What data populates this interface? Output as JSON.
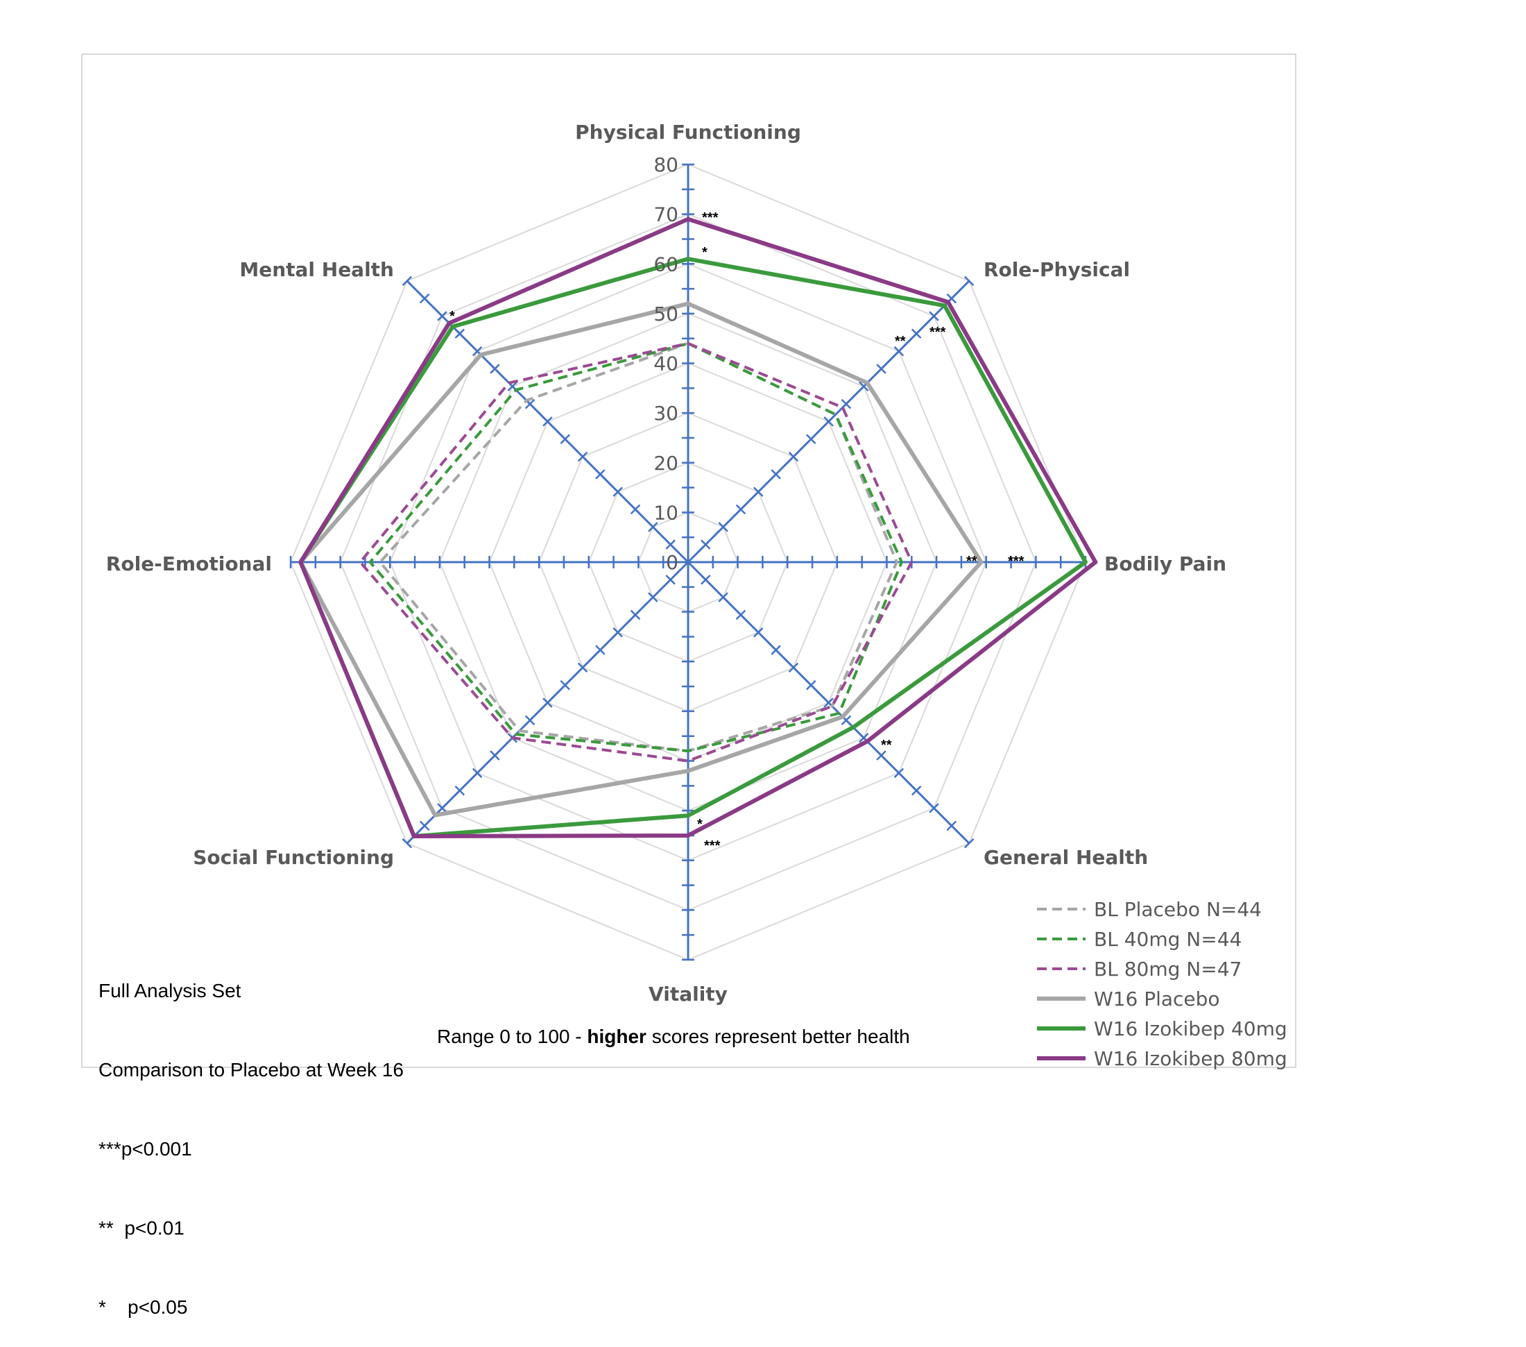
{
  "chart_data": {
    "type": "radar",
    "axes": [
      "Physical Functioning",
      "Role-Physical",
      "Bodily Pain",
      "General Health",
      "Vitality",
      "Social Functioning",
      "Role-Emotional",
      "Mental Health"
    ],
    "rlim": [
      0,
      80
    ],
    "r_ticks": [
      0,
      10,
      20,
      30,
      40,
      50,
      60,
      70,
      80
    ],
    "grid": true,
    "legend_position": "bottom-right",
    "series": [
      {
        "name": "BL Placebo N=44",
        "color": "#a6a6a6",
        "style": "dashed",
        "values": [
          44,
          42,
          42,
          41,
          38,
          48,
          62,
          46
        ]
      },
      {
        "name": "BL 40mg N=44",
        "color": "#3a9a3c",
        "style": "dashed",
        "values": [
          44,
          42,
          43,
          43,
          38,
          49,
          64,
          49
        ]
      },
      {
        "name": "BL 80mg N=47",
        "color": "#9b4a93",
        "style": "dashed",
        "values": [
          44,
          44,
          45,
          41,
          40,
          50,
          66,
          51
        ]
      },
      {
        "name": "W16 Placebo",
        "color": "#a6a6a6",
        "style": "solid",
        "values": [
          52,
          51,
          59,
          44,
          42,
          72,
          78,
          59
        ]
      },
      {
        "name": "W16 Izokibep 40mg",
        "color": "#3a9a3c",
        "style": "solid",
        "values": [
          61,
          73,
          80,
          47,
          51,
          78,
          78,
          67
        ]
      },
      {
        "name": "W16 Izokibep 80mg",
        "color": "#8a3a86",
        "style": "solid",
        "values": [
          69,
          74,
          82,
          51,
          55,
          78,
          78,
          68
        ]
      }
    ],
    "significance": [
      {
        "axis": "Physical Functioning",
        "marks": [
          "***",
          "*"
        ]
      },
      {
        "axis": "Role-Physical",
        "marks": [
          "***",
          "**"
        ]
      },
      {
        "axis": "Bodily Pain",
        "marks": [
          "***",
          "**"
        ]
      },
      {
        "axis": "General Health",
        "marks": [
          "**"
        ]
      },
      {
        "axis": "Vitality",
        "marks": [
          "*",
          "***"
        ]
      },
      {
        "axis": "Mental Health",
        "marks": [
          "*"
        ]
      }
    ]
  },
  "notes": {
    "lines": [
      "Full Analysis Set",
      "Comparison to Placebo at Week 16",
      "***p<0.001",
      "**  p<0.01",
      "*    p<0.05"
    ],
    "range_prefix": "Range 0 to 100 - ",
    "range_bold": "higher",
    "range_suffix": " scores represent better health"
  },
  "colors": {
    "axis": "#4472c4",
    "grid": "#d9d9d9",
    "frame": "#d9d9d9"
  }
}
